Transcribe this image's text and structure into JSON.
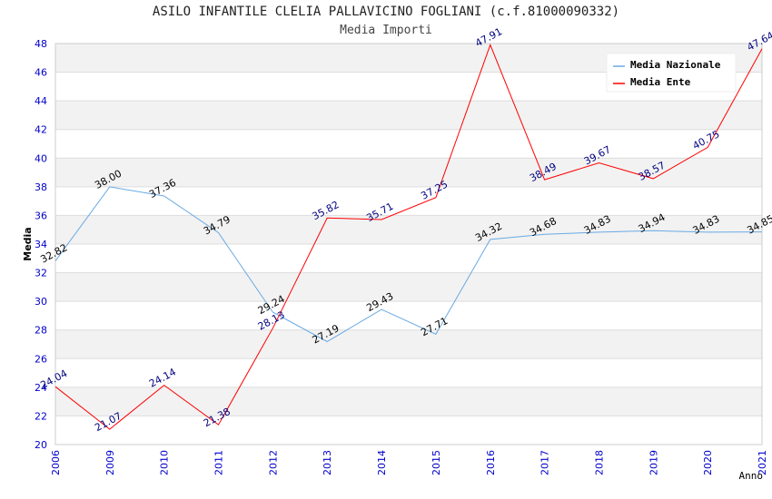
{
  "chart_data": {
    "type": "line",
    "title": "ASILO INFANTILE CLELIA PALLAVICINO FOGLIANI (c.f.81000090332)",
    "subtitle": "Media Importi",
    "xlabel": "Anno",
    "ylabel": "Media",
    "ylim": [
      20,
      48
    ],
    "ystep": 2,
    "categories": [
      "2006",
      "2009",
      "2010",
      "2011",
      "2012",
      "2013",
      "2014",
      "2015",
      "2016",
      "2017",
      "2018",
      "2019",
      "2020",
      "2021"
    ],
    "series": [
      {
        "name": "Media Nazionale",
        "color": "#6aaae4",
        "label_color": "#000000",
        "values": [
          32.82,
          38.0,
          37.36,
          34.79,
          29.24,
          27.19,
          29.43,
          27.71,
          34.32,
          34.68,
          34.83,
          34.94,
          34.83,
          34.85
        ],
        "labels": [
          "32.82",
          "38.00",
          "37.36",
          "34.79",
          "29.24",
          "27.19",
          "29.43",
          "27.71",
          "34.32",
          "34.68",
          "34.83",
          "34.94",
          "34.83",
          "34.85"
        ]
      },
      {
        "name": "Media Ente",
        "color": "#ff0000",
        "label_color": "#000080",
        "values": [
          24.04,
          21.07,
          24.14,
          21.38,
          28.13,
          35.82,
          35.71,
          37.25,
          47.91,
          38.49,
          39.67,
          38.57,
          40.75,
          47.64
        ],
        "labels": [
          "24.04",
          "21.07",
          "24.14",
          "21.38",
          "28.13",
          "35.82",
          "35.71",
          "37.25",
          "47.91",
          "38.49",
          "39.67",
          "38.57",
          "40.75",
          "47.64"
        ]
      }
    ],
    "legend_position": "top-right",
    "grid": true
  }
}
